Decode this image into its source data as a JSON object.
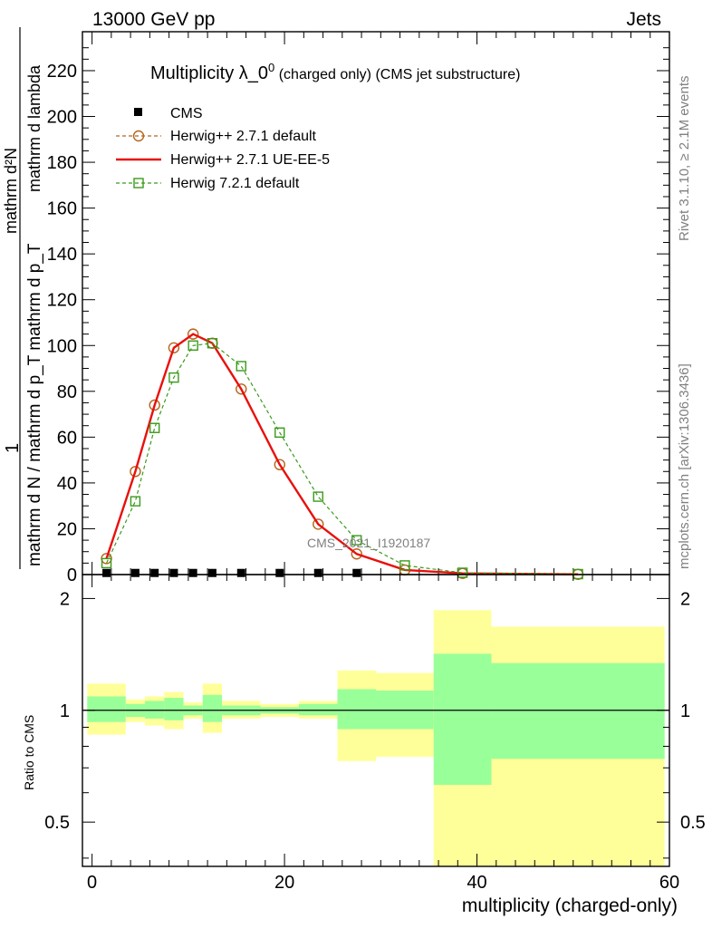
{
  "header": {
    "left": "13000 GeV pp",
    "right": "Jets"
  },
  "side_text": {
    "rivet": "Rivet 3.1.10, ≥ 2.1M events",
    "mcplots": "mcplots.cern.ch [arXiv:1306.3436]"
  },
  "chart_data": [
    {
      "type": "line",
      "title_main": "Multiplicity λ_0",
      "title_sup": "0",
      "title_sub": " (charged only) (CMS jet substructure)",
      "watermark": "CMS_2021_I1920187",
      "ylabel_prefix": "1",
      "ylabel_den": "mathrm d N / mathrm d p_T mathrm d p_T",
      "ylabel_num": "mathrm d²N",
      "ylabel_num2": "mathrm d lambda",
      "ylabel_top": "mathrm d N / mathrm d lambda",
      "ylim": [
        0,
        237
      ],
      "xlim": [
        -1,
        60
      ],
      "yticks": [
        0,
        20,
        40,
        60,
        80,
        100,
        120,
        140,
        160,
        180,
        200,
        220
      ],
      "legend_position": "top-left",
      "series": [
        {
          "name": "CMS",
          "marker": "filled-square",
          "color": "#000000",
          "x": [
            1.5,
            4.5,
            6.5,
            8.5,
            10.5,
            12.5,
            15.5,
            19.5,
            23.5,
            27.5
          ],
          "values": [
            0.7,
            0.7,
            0.7,
            0.7,
            0.7,
            0.7,
            0.7,
            0.7,
            0.7,
            0.7
          ]
        },
        {
          "name": "Herwig++ 2.7.1 default",
          "marker": "open-circle",
          "line": "dashed",
          "color": "#b5651d",
          "x": [
            1.5,
            4.5,
            6.5,
            8.5,
            10.5,
            12.5,
            15.5,
            19.5,
            23.5,
            27.5,
            32.5,
            38.5,
            50.5
          ],
          "values": [
            7,
            45,
            74,
            99,
            105,
            101,
            81,
            48,
            22,
            9,
            2,
            0.5,
            0.1
          ]
        },
        {
          "name": "Herwig++ 2.7.1 UE-EE-5",
          "marker": "none",
          "line": "solid",
          "color": "#e8100c",
          "x": [
            1.5,
            4.5,
            6.5,
            8.5,
            10.5,
            12.5,
            15.5,
            19.5,
            23.5,
            27.5,
            32.5,
            38.5,
            50.5
          ],
          "values": [
            7,
            45,
            74,
            99,
            105,
            101,
            81,
            48,
            22,
            9,
            2,
            0.5,
            0.1
          ]
        },
        {
          "name": "Herwig 7.2.1 default",
          "marker": "open-square",
          "line": "dashed",
          "color": "#3a9a1a",
          "x": [
            1.5,
            4.5,
            6.5,
            8.5,
            10.5,
            12.5,
            15.5,
            19.5,
            23.5,
            27.5,
            32.5,
            38.5,
            50.5
          ],
          "values": [
            5,
            32,
            64,
            86,
            100,
            101,
            91,
            62,
            34,
            15,
            4,
            0.8,
            0.2
          ]
        }
      ]
    },
    {
      "type": "area",
      "ylabel": "Ratio to CMS",
      "xlabel": "multiplicity (charged-only)",
      "xlim": [
        -1,
        60
      ],
      "ylim": [
        0.38,
        2.32
      ],
      "yticks": [
        0.5,
        1,
        2
      ],
      "ytick_labels": [
        "0.5",
        "1",
        "2"
      ],
      "xticks": [
        0,
        20,
        40,
        60
      ],
      "reference_line": 1,
      "bins": [
        {
          "lo": -0.5,
          "hi": 3.5,
          "inner": [
            0.93,
            1.09
          ],
          "outer": [
            0.86,
            1.18
          ]
        },
        {
          "lo": 3.5,
          "hi": 5.5,
          "inner": [
            0.96,
            1.04
          ],
          "outer": [
            0.93,
            1.07
          ]
        },
        {
          "lo": 5.5,
          "hi": 7.5,
          "inner": [
            0.95,
            1.06
          ],
          "outer": [
            0.91,
            1.09
          ]
        },
        {
          "lo": 7.5,
          "hi": 9.5,
          "inner": [
            0.94,
            1.08
          ],
          "outer": [
            0.89,
            1.12
          ]
        },
        {
          "lo": 9.5,
          "hi": 11.5,
          "inner": [
            0.97,
            1.03
          ],
          "outer": [
            0.95,
            1.05
          ]
        },
        {
          "lo": 11.5,
          "hi": 13.5,
          "inner": [
            0.93,
            1.1
          ],
          "outer": [
            0.87,
            1.18
          ]
        },
        {
          "lo": 13.5,
          "hi": 17.5,
          "inner": [
            0.97,
            1.03
          ],
          "outer": [
            0.95,
            1.06
          ]
        },
        {
          "lo": 17.5,
          "hi": 21.5,
          "inner": [
            0.98,
            1.02
          ],
          "outer": [
            0.96,
            1.04
          ]
        },
        {
          "lo": 21.5,
          "hi": 25.5,
          "inner": [
            0.97,
            1.04
          ],
          "outer": [
            0.95,
            1.06
          ]
        },
        {
          "lo": 25.5,
          "hi": 29.5,
          "inner": [
            0.89,
            1.14
          ],
          "outer": [
            0.73,
            1.28
          ]
        },
        {
          "lo": 29.5,
          "hi": 35.5,
          "inner": [
            0.89,
            1.13
          ],
          "outer": [
            0.75,
            1.26
          ]
        },
        {
          "lo": 35.5,
          "hi": 41.5,
          "inner": [
            0.63,
            1.42
          ],
          "outer": [
            0.38,
            1.86
          ]
        },
        {
          "lo": 41.5,
          "hi": 59.5,
          "inner": [
            0.74,
            1.34
          ],
          "outer": [
            0.38,
            1.68
          ]
        }
      ]
    }
  ]
}
